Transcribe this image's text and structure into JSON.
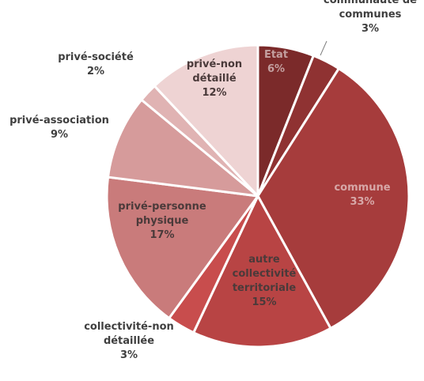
{
  "chart_data": {
    "type": "pie",
    "title": "",
    "slices": [
      {
        "label": "Etat",
        "value": 6,
        "pct_label": "6%",
        "color": "#7b2a2a",
        "label_pos": "inside"
      },
      {
        "label": "communauté de communes",
        "value": 3,
        "pct_label": "3%",
        "color": "#8f3232",
        "label_pos": "outside"
      },
      {
        "label": "commune",
        "value": 33,
        "pct_label": "33%",
        "color": "#a63c3c",
        "label_pos": "inside"
      },
      {
        "label": "autre collectivité territoriale",
        "value": 15,
        "pct_label": "15%",
        "color": "#b84444",
        "label_pos": "inside"
      },
      {
        "label": "collectivité-non détaillée",
        "value": 3,
        "pct_label": "3%",
        "color": "#c84d4d",
        "label_pos": "outside"
      },
      {
        "label": "privé-personne physique",
        "value": 17,
        "pct_label": "17%",
        "color": "#c97b7b",
        "label_pos": "inside"
      },
      {
        "label": "privé-association",
        "value": 9,
        "pct_label": "9%",
        "color": "#d69b9b",
        "label_pos": "outside"
      },
      {
        "label": "privé-société",
        "value": 2,
        "pct_label": "2%",
        "color": "#e0b3b3",
        "label_pos": "outside"
      },
      {
        "label": "privé-non détaillé",
        "value": 12,
        "pct_label": "12%",
        "color": "#eed3d3",
        "label_pos": "inside"
      }
    ]
  }
}
